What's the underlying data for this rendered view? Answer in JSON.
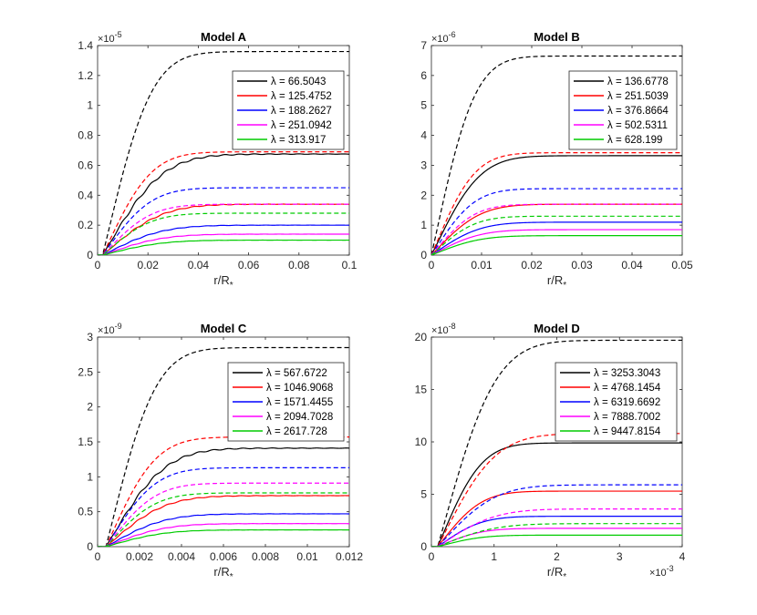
{
  "figure_title": "Four-panel line figure",
  "chart_data": [
    {
      "type": "line",
      "title": "Model A",
      "xlabel": "r/R",
      "xlabel_sub": "*",
      "ylabel": "",
      "xlim": [
        0,
        0.1
      ],
      "ylim": [
        0,
        1.4
      ],
      "y_multiplier": "×10",
      "y_multiplier_exp": "-5",
      "x_multiplier": "",
      "x_multiplier_exp": "",
      "xticks": [
        0,
        0.02,
        0.04,
        0.06,
        0.08,
        0.1
      ],
      "xtick_labels": [
        "0",
        "0.02",
        "0.04",
        "0.06",
        "0.08",
        "0.1"
      ],
      "yticks": [
        0,
        0.2,
        0.4,
        0.6,
        0.8,
        1,
        1.2,
        1.4
      ],
      "ytick_labels": [
        "0",
        "0.2",
        "0.4",
        "0.6",
        "0.8",
        "1",
        "1.2",
        "1.4"
      ],
      "rise_start": 0.002,
      "dashed_scale": 0.018,
      "solid_scale": 0.022,
      "wiggle": true,
      "legend_position": "top-right",
      "series": [
        {
          "name": "λ = 66.5043",
          "color": "#000000",
          "solid_final": 0.675,
          "dashed_final": 1.36
        },
        {
          "name": "λ = 125.4752",
          "color": "#ff0000",
          "solid_final": 0.34,
          "dashed_final": 0.69
        },
        {
          "name": "λ = 188.2627",
          "color": "#0000ff",
          "solid_final": 0.2,
          "dashed_final": 0.45
        },
        {
          "name": "λ = 251.0942",
          "color": "#ff00ff",
          "solid_final": 0.14,
          "dashed_final": 0.34
        },
        {
          "name": "λ = 313.917",
          "color": "#00cc00",
          "solid_final": 0.1,
          "dashed_final": 0.28
        }
      ]
    },
    {
      "type": "line",
      "title": "Model B",
      "xlabel": "r/R",
      "xlabel_sub": "*",
      "ylabel": "",
      "xlim": [
        0,
        0.05
      ],
      "ylim": [
        0,
        7
      ],
      "y_multiplier": "×10",
      "y_multiplier_exp": "-6",
      "x_multiplier": "",
      "x_multiplier_exp": "",
      "xticks": [
        0,
        0.01,
        0.02,
        0.03,
        0.04,
        0.05
      ],
      "xtick_labels": [
        "0",
        "0.01",
        "0.02",
        "0.03",
        "0.04",
        "0.05"
      ],
      "yticks": [
        0,
        1,
        2,
        3,
        4,
        5,
        6,
        7
      ],
      "ytick_labels": [
        "0",
        "1",
        "2",
        "3",
        "4",
        "5",
        "6",
        "7"
      ],
      "rise_start": 0.0,
      "dashed_scale": 0.008,
      "solid_scale": 0.009,
      "wiggle": false,
      "legend_position": "top-right",
      "series": [
        {
          "name": "λ = 136.6778",
          "color": "#000000",
          "solid_final": 3.32,
          "dashed_final": 6.65
        },
        {
          "name": "λ = 251.5039",
          "color": "#ff0000",
          "solid_final": 1.7,
          "dashed_final": 3.42
        },
        {
          "name": "λ = 376.8664",
          "color": "#0000ff",
          "solid_final": 1.1,
          "dashed_final": 2.22
        },
        {
          "name": "λ = 502.5311",
          "color": "#ff00ff",
          "solid_final": 0.85,
          "dashed_final": 1.7
        },
        {
          "name": "λ = 628.199",
          "color": "#00cc00",
          "solid_final": 0.65,
          "dashed_final": 1.3
        }
      ]
    },
    {
      "type": "line",
      "title": "Model C",
      "xlabel": "r/R",
      "xlabel_sub": "*",
      "ylabel": "",
      "xlim": [
        0,
        0.012
      ],
      "ylim": [
        0,
        3
      ],
      "y_multiplier": "×10",
      "y_multiplier_exp": "-9",
      "x_multiplier": "",
      "x_multiplier_exp": "",
      "xticks": [
        0,
        0.002,
        0.004,
        0.006,
        0.008,
        0.01,
        0.012
      ],
      "xtick_labels": [
        "0",
        "0.002",
        "0.004",
        "0.006",
        "0.008",
        "0.01",
        "0.012"
      ],
      "yticks": [
        0,
        0.5,
        1,
        1.5,
        2,
        2.5,
        3
      ],
      "ytick_labels": [
        "0",
        "0.5",
        "1",
        "1.5",
        "2",
        "2.5",
        "3"
      ],
      "rise_start": 0.0004,
      "dashed_scale": 0.0022,
      "solid_scale": 0.0026,
      "wiggle": true,
      "legend_position": "top-right",
      "series": [
        {
          "name": "λ = 567.6722",
          "color": "#000000",
          "solid_final": 1.41,
          "dashed_final": 2.85
        },
        {
          "name": "λ = 1046.9068",
          "color": "#ff0000",
          "solid_final": 0.73,
          "dashed_final": 1.57
        },
        {
          "name": "λ = 1571.4455",
          "color": "#0000ff",
          "solid_final": 0.47,
          "dashed_final": 1.13
        },
        {
          "name": "λ = 2094.7028",
          "color": "#ff00ff",
          "solid_final": 0.33,
          "dashed_final": 0.91
        },
        {
          "name": "λ = 2617.728",
          "color": "#00cc00",
          "solid_final": 0.24,
          "dashed_final": 0.77
        }
      ]
    },
    {
      "type": "line",
      "title": "Model D",
      "xlabel": "r/R",
      "xlabel_sub": "*",
      "ylabel": "",
      "xlim": [
        0,
        4
      ],
      "ylim": [
        0,
        20
      ],
      "y_multiplier": "×10",
      "y_multiplier_exp": "-8",
      "x_multiplier": "×10",
      "x_multiplier_exp": "-3",
      "xticks": [
        0,
        1,
        2,
        3,
        4
      ],
      "xtick_labels": [
        "0",
        "1",
        "2",
        "3",
        "4"
      ],
      "yticks": [
        0,
        5,
        10,
        15,
        20
      ],
      "ytick_labels": [
        "0",
        "5",
        "10",
        "15",
        "20"
      ],
      "rise_start": 0.1,
      "dashed_scale": 0.85,
      "solid_scale": 0.65,
      "wiggle": false,
      "legend_position": "top-right",
      "series": [
        {
          "name": "λ = 3253.3043",
          "color": "#000000",
          "solid_final": 9.9,
          "dashed_final": 19.7
        },
        {
          "name": "λ = 4768.1454",
          "color": "#ff0000",
          "solid_final": 5.3,
          "dashed_final": 10.8
        },
        {
          "name": "λ = 6319.6692",
          "color": "#0000ff",
          "solid_final": 2.9,
          "dashed_final": 5.9
        },
        {
          "name": "λ = 7888.7002",
          "color": "#ff00ff",
          "solid_final": 1.75,
          "dashed_final": 3.6
        },
        {
          "name": "λ = 9447.8154",
          "color": "#00cc00",
          "solid_final": 1.1,
          "dashed_final": 2.2
        }
      ]
    }
  ]
}
